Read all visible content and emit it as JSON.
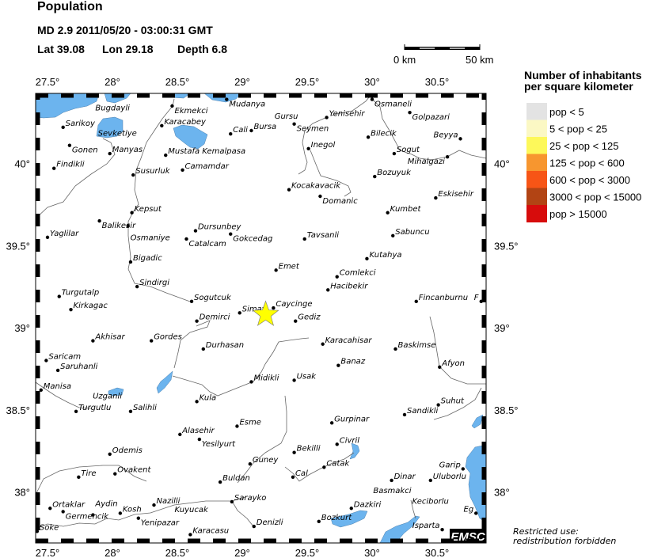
{
  "header": {
    "title": "Population",
    "event_line": "MD 2.9  2011/05/20 - 03:00:31 GMT",
    "lat_label": "Lat 39.08",
    "lon_label": "Lon  29.18",
    "depth_label": "Depth  6.8"
  },
  "epicenter": {
    "lat": 39.08,
    "lon": 29.18,
    "color": "#ffff00",
    "icon": "star-icon"
  },
  "scale_bar": {
    "start_label": "0 km",
    "end_label": "50 km"
  },
  "axes": {
    "lon_ticks": [
      "27.5°",
      "28°",
      "28.5°",
      "29°",
      "29.5°",
      "30°",
      "30.5°"
    ],
    "lat_ticks": [
      "40°",
      "39.5°",
      "39°",
      "38.5°",
      "38°"
    ]
  },
  "legend": {
    "title_line1": "Number of inhabitants",
    "title_line2": "per square kilometer",
    "items": [
      {
        "label": "pop < 5",
        "color": "#e3e3e3"
      },
      {
        "label": "5 < pop < 25",
        "color": "#fbf8c4"
      },
      {
        "label": "25 < pop < 125",
        "color": "#fdf85a"
      },
      {
        "label": "125 < pop < 600",
        "color": "#f7962f"
      },
      {
        "label": "600 < pop < 3000",
        "color": "#f75516"
      },
      {
        "label": "3000 < pop < 15000",
        "color": "#b24414"
      },
      {
        "label": "pop > 15000",
        "color": "#d70c0c"
      }
    ]
  },
  "notice": {
    "line1": "Restricted use:",
    "line2": "redistribution forbidden"
  },
  "logo": "EMSC",
  "colors": {
    "water": "#6cb4ee",
    "river": "#666666",
    "land": "#ffffff"
  },
  "cities": [
    {
      "name": "Mudanya",
      "lon": 28.88,
      "lat": 40.39
    },
    {
      "name": "Ekmekci",
      "lon": 28.46,
      "lat": 40.35
    },
    {
      "name": "Sarikoy",
      "lon": 27.62,
      "lat": 40.22
    },
    {
      "name": "Bugdayli",
      "lon": 27.85,
      "lat": 40.27,
      "nodot": true
    },
    {
      "name": "Sevketiye",
      "lon": 27.87,
      "lat": 40.16,
      "nodot": true
    },
    {
      "name": "Gonen",
      "lon": 27.67,
      "lat": 40.11
    },
    {
      "name": "Manyas",
      "lon": 27.98,
      "lat": 40.06
    },
    {
      "name": "Findikli",
      "lon": 27.55,
      "lat": 39.97
    },
    {
      "name": "Karacabey",
      "lon": 28.38,
      "lat": 40.23
    },
    {
      "name": "Mustafa Kemalpasa",
      "lon": 28.41,
      "lat": 40.05
    },
    {
      "name": "Camamdar",
      "lon": 28.54,
      "lat": 39.96
    },
    {
      "name": "Susurluk",
      "lon": 28.16,
      "lat": 39.93
    },
    {
      "name": "Kepsut",
      "lon": 28.15,
      "lat": 39.7
    },
    {
      "name": "Balikesir",
      "lon": 27.9,
      "lat": 39.65
    },
    {
      "name": "Osmaniye",
      "lon": 28.12,
      "lat": 39.62
    },
    {
      "name": "Yaglilar",
      "lon": 27.5,
      "lat": 39.55
    },
    {
      "name": "Dursunbey",
      "lon": 28.64,
      "lat": 39.59
    },
    {
      "name": "Catalcam",
      "lon": 28.57,
      "lat": 39.54
    },
    {
      "name": "Gokcedag",
      "lon": 28.91,
      "lat": 39.57
    },
    {
      "name": "Cali",
      "lon": 28.91,
      "lat": 40.18
    },
    {
      "name": "Bursa",
      "lon": 29.07,
      "lat": 40.2
    },
    {
      "name": "Gursu",
      "lon": 29.23,
      "lat": 40.22,
      "nodot": true
    },
    {
      "name": "Seymen",
      "lon": 29.4,
      "lat": 40.24
    },
    {
      "name": "Yenisehir",
      "lon": 29.65,
      "lat": 40.28
    },
    {
      "name": "Inegol",
      "lon": 29.51,
      "lat": 40.09
    },
    {
      "name": "Osmaneli",
      "lon": 30.0,
      "lat": 40.39
    },
    {
      "name": "Golpazari",
      "lon": 30.29,
      "lat": 40.31
    },
    {
      "name": "Bilecik",
      "lon": 29.97,
      "lat": 40.16
    },
    {
      "name": "Sogut",
      "lon": 30.17,
      "lat": 40.06
    },
    {
      "name": "Beyya",
      "lon": 30.68,
      "lat": 40.15
    },
    {
      "name": "Mihalgazi",
      "lon": 30.58,
      "lat": 40.04
    },
    {
      "name": "Bozuyuk",
      "lon": 30.02,
      "lat": 39.92
    },
    {
      "name": "Kocakavacik",
      "lon": 29.36,
      "lat": 39.84
    },
    {
      "name": "Domanic",
      "lon": 29.6,
      "lat": 39.8
    },
    {
      "name": "Eskisehir",
      "lon": 30.49,
      "lat": 39.79
    },
    {
      "name": "Kumbet",
      "lon": 30.12,
      "lat": 39.7
    },
    {
      "name": "Tavsanli",
      "lon": 29.48,
      "lat": 39.54
    },
    {
      "name": "Sabuncu",
      "lon": 30.16,
      "lat": 39.56
    },
    {
      "name": "Bigadic",
      "lon": 28.14,
      "lat": 39.4
    },
    {
      "name": "Sindirgi",
      "lon": 28.19,
      "lat": 39.25
    },
    {
      "name": "Turgutalp",
      "lon": 27.59,
      "lat": 39.19
    },
    {
      "name": "Kirkagac",
      "lon": 27.68,
      "lat": 39.11
    },
    {
      "name": "Sogutcuk",
      "lon": 28.61,
      "lat": 39.16
    },
    {
      "name": "Demirci",
      "lon": 28.65,
      "lat": 39.04
    },
    {
      "name": "Simav",
      "lon": 28.98,
      "lat": 39.09
    },
    {
      "name": "Akhisar",
      "lon": 27.85,
      "lat": 38.92
    },
    {
      "name": "Gordes",
      "lon": 28.3,
      "lat": 38.92
    },
    {
      "name": "Durhasan",
      "lon": 28.7,
      "lat": 38.87
    },
    {
      "name": "Saricam",
      "lon": 27.49,
      "lat": 38.8
    },
    {
      "name": "Saruhanli",
      "lon": 27.58,
      "lat": 38.74
    },
    {
      "name": "Manisa",
      "lon": 27.45,
      "lat": 38.62
    },
    {
      "name": "Kula",
      "lon": 28.65,
      "lat": 38.55
    },
    {
      "name": "Midikli",
      "lon": 29.07,
      "lat": 38.67
    },
    {
      "name": "Emet",
      "lon": 29.26,
      "lat": 39.35
    },
    {
      "name": "Comlekci",
      "lon": 29.73,
      "lat": 39.31
    },
    {
      "name": "Kutahya",
      "lon": 29.96,
      "lat": 39.42
    },
    {
      "name": "Hacibekir",
      "lon": 29.66,
      "lat": 39.23
    },
    {
      "name": "Caycinge",
      "lon": 29.24,
      "lat": 39.12
    },
    {
      "name": "Gediz",
      "lon": 29.41,
      "lat": 39.04
    },
    {
      "name": "Fincanburnu",
      "lon": 30.34,
      "lat": 39.16
    },
    {
      "name": "F",
      "lon": 30.84,
      "lat": 39.16
    },
    {
      "name": "Karacahisar",
      "lon": 29.62,
      "lat": 38.9
    },
    {
      "name": "Baskimse",
      "lon": 30.18,
      "lat": 38.87
    },
    {
      "name": "Banaz",
      "lon": 29.74,
      "lat": 38.77
    },
    {
      "name": "Usak",
      "lon": 29.4,
      "lat": 38.68
    },
    {
      "name": "Afyon",
      "lon": 30.52,
      "lat": 38.76
    },
    {
      "name": "Suhut",
      "lon": 30.51,
      "lat": 38.53
    },
    {
      "name": "Sandikli",
      "lon": 30.25,
      "lat": 38.47
    },
    {
      "name": "Uzganli",
      "lon": 27.83,
      "lat": 38.56,
      "nodot": true
    },
    {
      "name": "Turgutlu",
      "lon": 27.72,
      "lat": 38.49
    },
    {
      "name": "Salihli",
      "lon": 28.14,
      "lat": 38.49
    },
    {
      "name": "Alasehir",
      "lon": 28.52,
      "lat": 38.35
    },
    {
      "name": "Yesilyurt",
      "lon": 28.67,
      "lat": 38.32
    },
    {
      "name": "Esme",
      "lon": 28.96,
      "lat": 38.4
    },
    {
      "name": "Odemis",
      "lon": 27.98,
      "lat": 38.23
    },
    {
      "name": "Tire",
      "lon": 27.74,
      "lat": 38.09
    },
    {
      "name": "Ovakent",
      "lon": 28.02,
      "lat": 38.11
    },
    {
      "name": "Buldan",
      "lon": 28.83,
      "lat": 38.06
    },
    {
      "name": "Guney",
      "lon": 29.06,
      "lat": 38.17
    },
    {
      "name": "Sarayko",
      "lon": 28.92,
      "lat": 37.94
    },
    {
      "name": "Nazilli",
      "lon": 28.32,
      "lat": 37.92
    },
    {
      "name": "Kuyucak",
      "lon": 28.46,
      "lat": 37.92,
      "nodot": true
    },
    {
      "name": "Ortaklar",
      "lon": 27.52,
      "lat": 37.9
    },
    {
      "name": "Germencik",
      "lon": 27.62,
      "lat": 37.88
    },
    {
      "name": "Aydin",
      "lon": 27.85,
      "lat": 37.86
    },
    {
      "name": "Kosh",
      "lon": 28.06,
      "lat": 37.87
    },
    {
      "name": "Yenipazar",
      "lon": 28.2,
      "lat": 37.84
    },
    {
      "name": "Soke",
      "lon": 27.42,
      "lat": 37.76
    },
    {
      "name": "Karacasu",
      "lon": 28.6,
      "lat": 37.74
    },
    {
      "name": "Denizli",
      "lon": 29.09,
      "lat": 37.79
    },
    {
      "name": "Gurpinar",
      "lon": 29.69,
      "lat": 38.42
    },
    {
      "name": "Civril",
      "lon": 29.73,
      "lat": 38.29
    },
    {
      "name": "Bekilli",
      "lon": 29.4,
      "lat": 38.24
    },
    {
      "name": "Catak",
      "lon": 29.63,
      "lat": 38.15
    },
    {
      "name": "Cal",
      "lon": 29.39,
      "lat": 38.09
    },
    {
      "name": "Dinar",
      "lon": 30.15,
      "lat": 38.07
    },
    {
      "name": "Uluborlu",
      "lon": 30.45,
      "lat": 38.07
    },
    {
      "name": "Garip",
      "lon": 30.7,
      "lat": 38.14
    },
    {
      "name": "Dazkiri",
      "lon": 29.84,
      "lat": 37.9
    },
    {
      "name": "Basmakci",
      "lon": 29.99,
      "lat": 37.94,
      "nodot": true
    },
    {
      "name": "Keciborlu",
      "lon": 30.29,
      "lat": 37.97,
      "nodot": true
    },
    {
      "name": "Bozkurt",
      "lon": 29.59,
      "lat": 37.82
    },
    {
      "name": "Isparta",
      "lon": 30.54,
      "lat": 37.77
    },
    {
      "name": "Eg",
      "lon": 30.8,
      "lat": 37.87
    }
  ]
}
